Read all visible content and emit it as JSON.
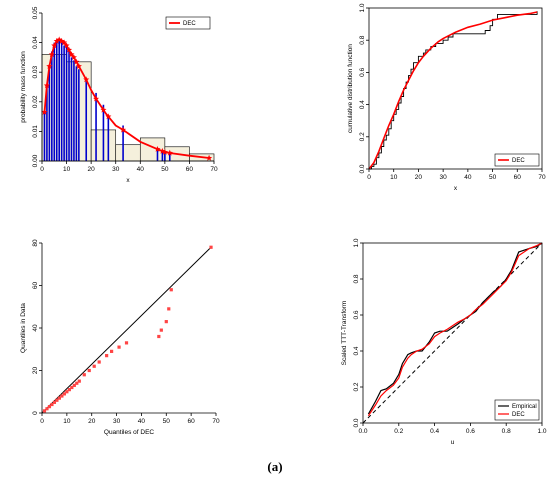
{
  "caption": "(a)",
  "colors": {
    "fit": "#ff0000",
    "empirical": "#000000",
    "hist_fill": "#f5f0dc",
    "bars": "#0000cc",
    "qq_points": "#ff4444"
  },
  "chart_data": [
    {
      "id": "pmf",
      "type": "bar",
      "xlabel": "x",
      "ylabel": "probability mass function",
      "xlim": [
        0,
        70
      ],
      "ylim": [
        0,
        0.05
      ],
      "xticks": [
        "0",
        "10",
        "20",
        "30",
        "40",
        "50",
        "60",
        "70"
      ],
      "yticks": [
        "0.00",
        "0.01",
        "0.02",
        "0.03",
        "0.04",
        "0.05"
      ],
      "histogram": {
        "edges": [
          0,
          10,
          20,
          30,
          40,
          50,
          60,
          70
        ],
        "density": [
          0.036,
          0.0335,
          0.0105,
          0.0055,
          0.0078,
          0.0048,
          0.0024
        ]
      },
      "bars": {
        "x": [
          1,
          2,
          3,
          4,
          5,
          6,
          7,
          8,
          9,
          10,
          11,
          12,
          13,
          14,
          15,
          18,
          22,
          25,
          27,
          33,
          47,
          49,
          50,
          52
        ],
        "values": [
          0.0165,
          0.0255,
          0.032,
          0.037,
          0.04,
          0.041,
          0.041,
          0.04,
          0.039,
          0.039,
          0.037,
          0.035,
          0.034,
          0.032,
          0.031,
          0.027,
          0.023,
          0.019,
          0.015,
          0.012,
          0.004,
          0.0035,
          0.003,
          0.0025
        ]
      },
      "series": [
        {
          "name": "DEC",
          "x": [
            1,
            2,
            3,
            4,
            5,
            6,
            7,
            8,
            9,
            10,
            11,
            12,
            13,
            14,
            15,
            16,
            18,
            20,
            22,
            24,
            26,
            28,
            30,
            33,
            40,
            47,
            50,
            52,
            60,
            68
          ],
          "values": [
            0.0165,
            0.0255,
            0.032,
            0.036,
            0.039,
            0.0405,
            0.041,
            0.0405,
            0.04,
            0.039,
            0.0375,
            0.036,
            0.035,
            0.0335,
            0.032,
            0.0305,
            0.0275,
            0.024,
            0.021,
            0.0185,
            0.016,
            0.014,
            0.012,
            0.0105,
            0.0065,
            0.004,
            0.003,
            0.0027,
            0.0018,
            0.001
          ]
        }
      ],
      "markers_x": [
        1,
        2,
        3,
        4,
        5,
        6,
        7,
        8,
        9,
        10,
        11,
        12,
        13,
        14,
        15,
        18,
        22,
        25,
        27,
        33,
        47,
        49,
        50,
        52,
        68
      ],
      "legend": {
        "position": "top-right",
        "entries": [
          "DEC"
        ]
      }
    },
    {
      "id": "cdf",
      "type": "line",
      "xlabel": "x",
      "ylabel": "cumulative distribution function",
      "xlim": [
        0,
        70
      ],
      "ylim": [
        0,
        1
      ],
      "xticks": [
        "0",
        "10",
        "20",
        "30",
        "40",
        "50",
        "60",
        "70"
      ],
      "yticks": [
        "0.0",
        "0.2",
        "0.4",
        "0.6",
        "0.8",
        "1.0"
      ],
      "empirical": {
        "x": [
          1,
          2,
          3,
          4,
          5,
          6,
          7,
          8,
          9,
          10,
          11,
          12,
          13,
          14,
          15,
          16,
          17,
          18,
          20,
          22,
          23,
          25,
          27,
          30,
          32,
          34,
          47,
          49,
          50,
          52,
          68
        ],
        "values": [
          0.016,
          0.03,
          0.07,
          0.1,
          0.14,
          0.18,
          0.21,
          0.25,
          0.3,
          0.34,
          0.37,
          0.41,
          0.45,
          0.5,
          0.54,
          0.58,
          0.62,
          0.66,
          0.7,
          0.72,
          0.74,
          0.76,
          0.78,
          0.8,
          0.82,
          0.84,
          0.86,
          0.89,
          0.93,
          0.96,
          0.98
        ]
      },
      "series": [
        {
          "name": "DEC",
          "x": [
            0,
            2,
            4,
            6,
            8,
            10,
            12,
            14,
            16,
            18,
            20,
            22,
            25,
            28,
            30,
            35,
            40,
            45,
            50,
            55,
            60,
            65,
            68
          ],
          "values": [
            0.0,
            0.04,
            0.11,
            0.19,
            0.27,
            0.34,
            0.42,
            0.49,
            0.55,
            0.61,
            0.66,
            0.7,
            0.75,
            0.79,
            0.81,
            0.85,
            0.88,
            0.9,
            0.925,
            0.94,
            0.955,
            0.965,
            0.975
          ]
        }
      ],
      "legend": {
        "position": "bottom-right",
        "entries": [
          "DEC"
        ]
      }
    },
    {
      "id": "qq",
      "type": "scatter",
      "xlabel": "Quantiles of DEC",
      "ylabel": "Quantiles in Data",
      "xlim": [
        0,
        70
      ],
      "ylim": [
        0,
        80
      ],
      "xticks": [
        "0",
        "10",
        "20",
        "30",
        "40",
        "50",
        "60",
        "70"
      ],
      "yticks": [
        "0",
        "20",
        "40",
        "60",
        "80"
      ],
      "reference_line": [
        [
          0,
          0
        ],
        [
          68,
          78
        ]
      ],
      "points": {
        "x": [
          1,
          2,
          3,
          4,
          5,
          6,
          7,
          8,
          9,
          10,
          11,
          12,
          13,
          14,
          15,
          17,
          19,
          21,
          23,
          26,
          28,
          31,
          34,
          47,
          48,
          50,
          51,
          52,
          68
        ],
        "y": [
          1,
          2,
          3,
          4,
          5,
          6,
          7,
          8,
          9,
          10,
          11,
          12,
          13,
          14,
          15,
          18,
          20,
          22,
          24,
          27,
          29,
          31,
          33,
          36,
          39,
          43,
          49,
          58,
          78
        ]
      }
    },
    {
      "id": "ttt",
      "type": "line",
      "xlabel": "u",
      "ylabel": "Scaled TTT-Transform",
      "xlim": [
        0,
        1
      ],
      "ylim": [
        0,
        1
      ],
      "xticks": [
        "0.0",
        "0.2",
        "0.4",
        "0.6",
        "0.8",
        "1.0"
      ],
      "yticks": [
        "0.0",
        "0.2",
        "0.4",
        "0.6",
        "0.8",
        "1.0"
      ],
      "series": [
        {
          "name": "Empirical",
          "x": [
            0.03,
            0.07,
            0.1,
            0.13,
            0.17,
            0.2,
            0.22,
            0.25,
            0.27,
            0.3,
            0.33,
            0.37,
            0.4,
            0.43,
            0.47,
            0.5,
            0.53,
            0.57,
            0.6,
            0.63,
            0.67,
            0.7,
            0.73,
            0.77,
            0.8,
            0.83,
            0.87,
            0.9,
            0.93,
            0.97,
            1.0
          ],
          "values": [
            0.05,
            0.12,
            0.18,
            0.19,
            0.22,
            0.27,
            0.33,
            0.38,
            0.39,
            0.4,
            0.4,
            0.45,
            0.5,
            0.51,
            0.51,
            0.53,
            0.55,
            0.58,
            0.6,
            0.62,
            0.67,
            0.7,
            0.73,
            0.76,
            0.8,
            0.85,
            0.95,
            0.96,
            0.97,
            0.98,
            1.0
          ]
        },
        {
          "name": "DEC",
          "x": [
            0.03,
            0.07,
            0.1,
            0.13,
            0.17,
            0.2,
            0.22,
            0.25,
            0.27,
            0.3,
            0.33,
            0.37,
            0.4,
            0.43,
            0.47,
            0.5,
            0.53,
            0.57,
            0.6,
            0.63,
            0.67,
            0.7,
            0.73,
            0.77,
            0.8,
            0.83,
            0.87,
            0.9,
            0.93,
            0.97,
            1.0
          ],
          "values": [
            0.04,
            0.1,
            0.15,
            0.18,
            0.21,
            0.25,
            0.31,
            0.36,
            0.38,
            0.4,
            0.41,
            0.44,
            0.48,
            0.5,
            0.52,
            0.54,
            0.56,
            0.58,
            0.6,
            0.63,
            0.66,
            0.69,
            0.72,
            0.76,
            0.79,
            0.84,
            0.93,
            0.95,
            0.97,
            0.985,
            1.0
          ]
        }
      ],
      "reference_line": [
        [
          0,
          0
        ],
        [
          1,
          1
        ]
      ],
      "legend": {
        "position": "bottom-right",
        "entries": [
          "Empirical",
          "DEC"
        ]
      }
    }
  ]
}
